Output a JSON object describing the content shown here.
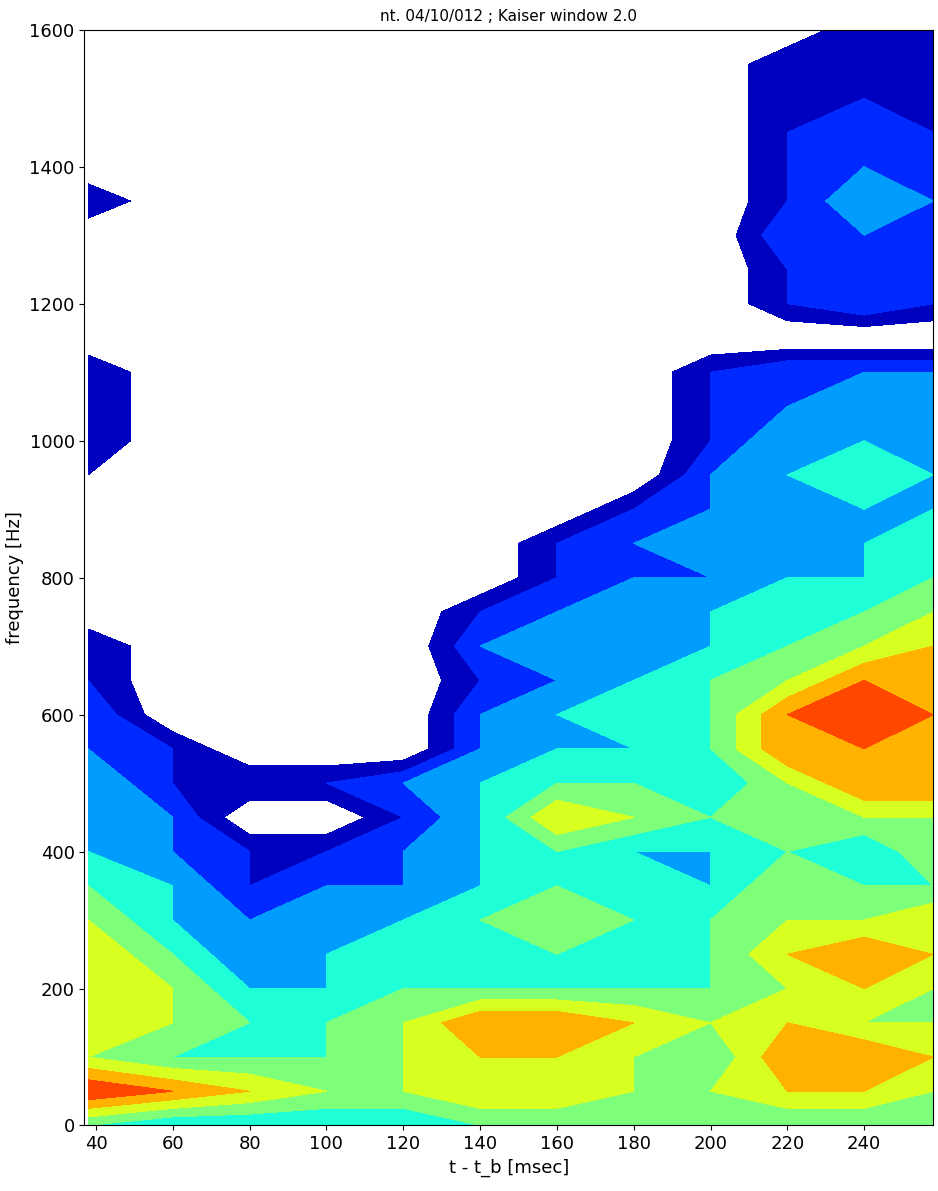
{
  "chart_data": {
    "type": "contour",
    "title": "nt. 04/10/012 ; Kaiser window 2.0",
    "x_label": "t - t_b [msec]",
    "y_label": "frequency [Hz]",
    "x": [
      38,
      60,
      80,
      100,
      120,
      140,
      160,
      180,
      200,
      220,
      240,
      258
    ],
    "y": [
      0,
      50,
      100,
      150,
      200,
      250,
      300,
      350,
      400,
      450,
      500,
      550,
      600,
      650,
      700,
      750,
      800,
      850,
      900,
      950,
      1000,
      1050,
      1100,
      1150,
      1200,
      1250,
      1300,
      1350,
      1400,
      1450,
      1500,
      1550,
      1600
    ],
    "z": [
      [
        5,
        4,
        4,
        4,
        4,
        5,
        5,
        5,
        5,
        5,
        5,
        5
      ],
      [
        9,
        8,
        7,
        6,
        6,
        7,
        7,
        6,
        6,
        7,
        7,
        6
      ],
      [
        6,
        5,
        5,
        5,
        6,
        7,
        7,
        6,
        5,
        8,
        8,
        7
      ],
      [
        7,
        6,
        5,
        5,
        6,
        8,
        8,
        7,
        6,
        7,
        6,
        6
      ],
      [
        7,
        6,
        4,
        4,
        5,
        5,
        5,
        5,
        5,
        6,
        7,
        6
      ],
      [
        7,
        5,
        3,
        4,
        5,
        5,
        5,
        5,
        5,
        7,
        8,
        7
      ],
      [
        6,
        4,
        3,
        4,
        4,
        5,
        6,
        5,
        5,
        6,
        6,
        7
      ],
      [
        5,
        4,
        2,
        3,
        3,
        4,
        5,
        5,
        4,
        6,
        5,
        5
      ],
      [
        4,
        3,
        2,
        2,
        3,
        4,
        5,
        4,
        4,
        5,
        4,
        6
      ],
      [
        4,
        3,
        0,
        0,
        2,
        4,
        7,
        6,
        5,
        6,
        6,
        6
      ],
      [
        4,
        2,
        2,
        2,
        3,
        4,
        5,
        5,
        4,
        6,
        8,
        8
      ],
      [
        3,
        2,
        0,
        0,
        0,
        3,
        4,
        4,
        5,
        8,
        8,
        7
      ],
      [
        3,
        0,
        0,
        0,
        0,
        3,
        4,
        5,
        5,
        8,
        9,
        8
      ],
      [
        2,
        0,
        0,
        0,
        0,
        2,
        3,
        4,
        5,
        6,
        8,
        8
      ],
      [
        2,
        0,
        0,
        0,
        0,
        3,
        4,
        4,
        4,
        5,
        6,
        7
      ],
      [
        0,
        0,
        0,
        0,
        0,
        2,
        3,
        4,
        4,
        5,
        5,
        6
      ],
      [
        0,
        0,
        0,
        0,
        0,
        0,
        2,
        3,
        3,
        4,
        4,
        5
      ],
      [
        0,
        0,
        0,
        0,
        0,
        0,
        2,
        3,
        4,
        4,
        4,
        5
      ],
      [
        0,
        0,
        0,
        0,
        0,
        0,
        0,
        2,
        3,
        4,
        4,
        4
      ],
      [
        1,
        0,
        0,
        0,
        0,
        0,
        0,
        0,
        3,
        4,
        5,
        4
      ],
      [
        2,
        0,
        0,
        0,
        0,
        0,
        0,
        0,
        2,
        4,
        4,
        4
      ],
      [
        2,
        0,
        0,
        0,
        0,
        0,
        0,
        0,
        2,
        3,
        4,
        4
      ],
      [
        2,
        0,
        0,
        0,
        0,
        0,
        0,
        0,
        2,
        3,
        3,
        3
      ],
      [
        0,
        0,
        0,
        0,
        0,
        0,
        0,
        0,
        0,
        0,
        0,
        0
      ],
      [
        0,
        0,
        0,
        0,
        0,
        0,
        0,
        0,
        0,
        2,
        3,
        2
      ],
      [
        0,
        0,
        0,
        0,
        0,
        0,
        0,
        0,
        0,
        2,
        3,
        3
      ],
      [
        0,
        0,
        0,
        0,
        0,
        0,
        0,
        0,
        0,
        3,
        3,
        3
      ],
      [
        2,
        0,
        0,
        0,
        0,
        0,
        0,
        0,
        0,
        2,
        4,
        3
      ],
      [
        0,
        0,
        0,
        0,
        0,
        0,
        0,
        0,
        0,
        2,
        3,
        3
      ],
      [
        0,
        0,
        0,
        0,
        0,
        0,
        0,
        0,
        0,
        2,
        3,
        2
      ],
      [
        0,
        0,
        0,
        0,
        0,
        0,
        0,
        0,
        0,
        2,
        2,
        2
      ],
      [
        0,
        0,
        0,
        0,
        0,
        0,
        0,
        0,
        0,
        2,
        2,
        2
      ],
      [
        0,
        0,
        0,
        0,
        0,
        0,
        0,
        0,
        0,
        0,
        2,
        2
      ]
    ],
    "zlim": [
      1,
      10
    ],
    "xlim": [
      37,
      258
    ],
    "xticks": [
      40,
      60,
      80,
      100,
      120,
      140,
      160,
      180,
      200,
      220,
      240
    ],
    "ylim": [
      0,
      1600
    ],
    "yticks": [
      0,
      200,
      400,
      600,
      800,
      1000,
      1200,
      1400,
      1600
    ]
  }
}
